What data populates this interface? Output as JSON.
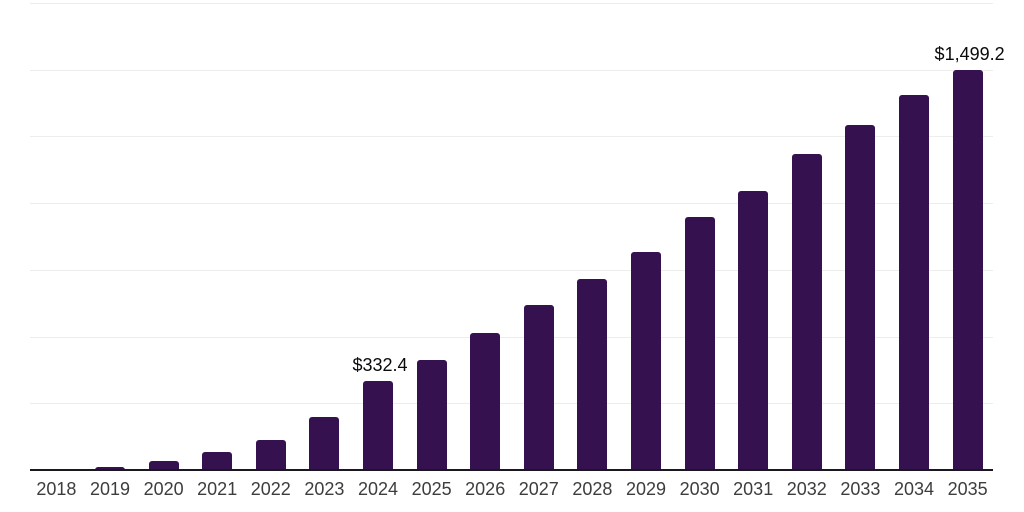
{
  "chart_data": {
    "type": "bar",
    "title": "",
    "xlabel": "",
    "ylabel": "",
    "categories": [
      "2018",
      "2019",
      "2020",
      "2021",
      "2022",
      "2023",
      "2024",
      "2025",
      "2026",
      "2027",
      "2028",
      "2029",
      "2030",
      "2031",
      "2032",
      "2033",
      "2034",
      "2035"
    ],
    "values": [
      5,
      10,
      33,
      67,
      111,
      198,
      332.4,
      413,
      513,
      617,
      715,
      816,
      948,
      1045,
      1186,
      1293,
      1405,
      1499.2
    ],
    "data_labels": [
      {
        "category": "2024",
        "text": "$332.4"
      },
      {
        "category": "2035",
        "text": "$1,499.2"
      }
    ],
    "ylim": [
      0,
      1750
    ],
    "grid_values": [
      250,
      500,
      750,
      1000,
      1250,
      1500,
      1750
    ],
    "y_axis_labels_visible": false,
    "legend": "none",
    "colors": {
      "bar": "#351150",
      "axis": "#1a1720",
      "gridline": "#ededed",
      "tick_label": "#3d3d3d",
      "data_label": "#0a0a0a",
      "background": "#ffffff"
    }
  }
}
